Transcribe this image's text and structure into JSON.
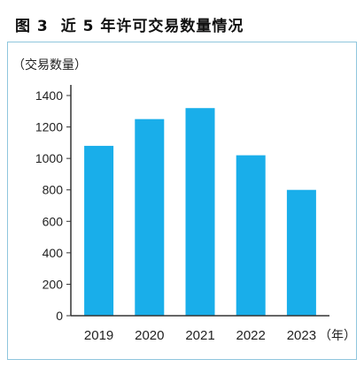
{
  "figure": {
    "number": "图 3",
    "title": "近 5 年许可交易数量情况"
  },
  "chart_data": {
    "type": "bar",
    "title": "近 5 年许可交易数量情况",
    "ylabel": "（交易数量）",
    "xlabel": "（年）",
    "categories": [
      "2019",
      "2020",
      "2021",
      "2022",
      "2023"
    ],
    "values": [
      1080,
      1250,
      1320,
      1020,
      800
    ],
    "ylim": [
      0,
      1400
    ],
    "yticks": [
      0,
      200,
      400,
      600,
      800,
      1000,
      1200,
      1400
    ],
    "grid": false,
    "bar_color": "#19aeea",
    "axis_color": "#333333"
  }
}
